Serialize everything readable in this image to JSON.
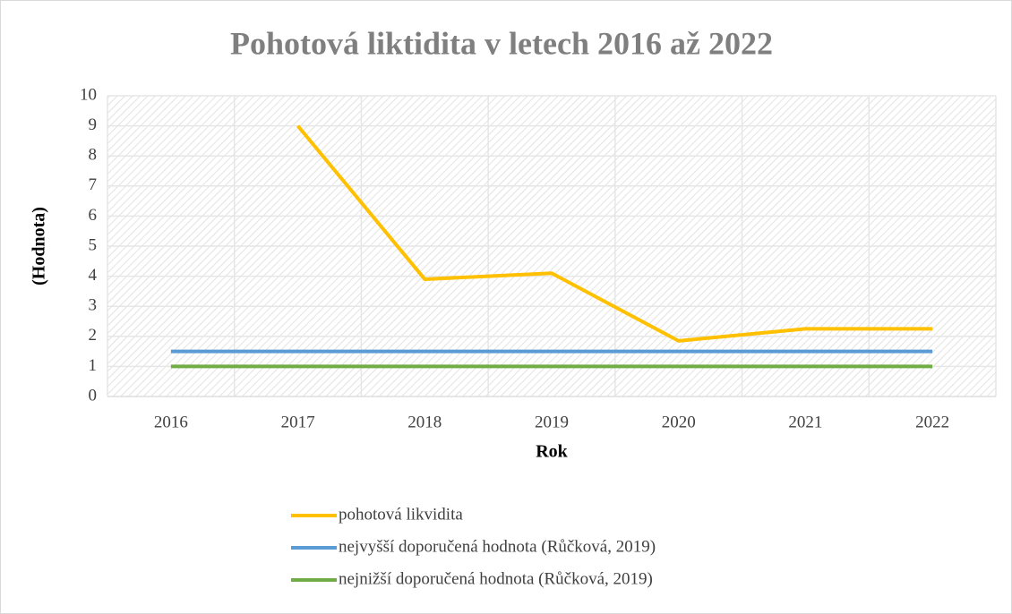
{
  "chart_data": {
    "type": "line",
    "title": "Pohotová liktidita v letech 2016 až 2022",
    "x_label": "Rok",
    "y_label": "(Hodnota)",
    "categories": [
      "2016",
      "2017",
      "2018",
      "2019",
      "2020",
      "2021",
      "2022"
    ],
    "series": [
      {
        "name": "pohotová likvidita",
        "color": "#ffc000",
        "values": [
          null,
          9,
          3.9,
          4.1,
          1.85,
          2.25,
          2.25
        ]
      },
      {
        "name": "nejvyšší doporučená hodnota (Růčková, 2019)",
        "color": "#5b9bd5",
        "values": [
          1.5,
          1.5,
          1.5,
          1.5,
          1.5,
          1.5,
          1.5
        ]
      },
      {
        "name": "nejnižší doporučená hodnota (Růčková, 2019)",
        "color": "#70ad47",
        "values": [
          1,
          1,
          1,
          1,
          1,
          1,
          1
        ]
      }
    ],
    "ylim": [
      0,
      10
    ],
    "yticks": [
      0,
      1,
      2,
      3,
      4,
      5,
      6,
      7,
      8,
      9,
      10
    ],
    "grid": true,
    "legend": "bottom"
  }
}
